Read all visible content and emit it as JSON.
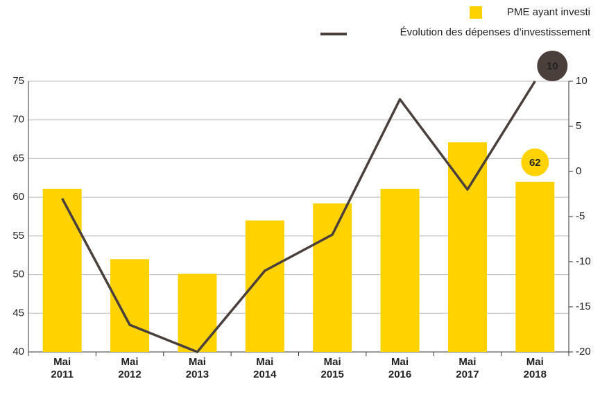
{
  "chart_data": {
    "type": "bar-line",
    "categories": [
      "Mai 2011",
      "Mai 2012",
      "Mai 2013",
      "Mai 2014",
      "Mai 2015",
      "Mai 2016",
      "Mai 2017",
      "Mai 2018"
    ],
    "series": [
      {
        "name": "PME ayant investi",
        "color": "#ffd200",
        "type": "bar",
        "values": [
          61.1,
          52,
          50.1,
          57,
          59.2,
          61.1,
          67.1,
          62
        ]
      },
      {
        "name": "Évolution des dépenses d’investissement",
        "color": "#4a3f3b",
        "type": "line",
        "axis": "y2",
        "values": [
          -3,
          -17,
          -20,
          -11,
          -7,
          8,
          -2,
          10
        ]
      }
    ],
    "ylim": [
      40,
      75
    ],
    "yticks": [
      40,
      45,
      50,
      55,
      60,
      65,
      70,
      75
    ],
    "y2lim": [
      -20,
      10
    ],
    "y2ticks": [
      -20,
      -15,
      -10,
      -5,
      0,
      5,
      10
    ],
    "grid": true,
    "legend": "top-right"
  }
}
